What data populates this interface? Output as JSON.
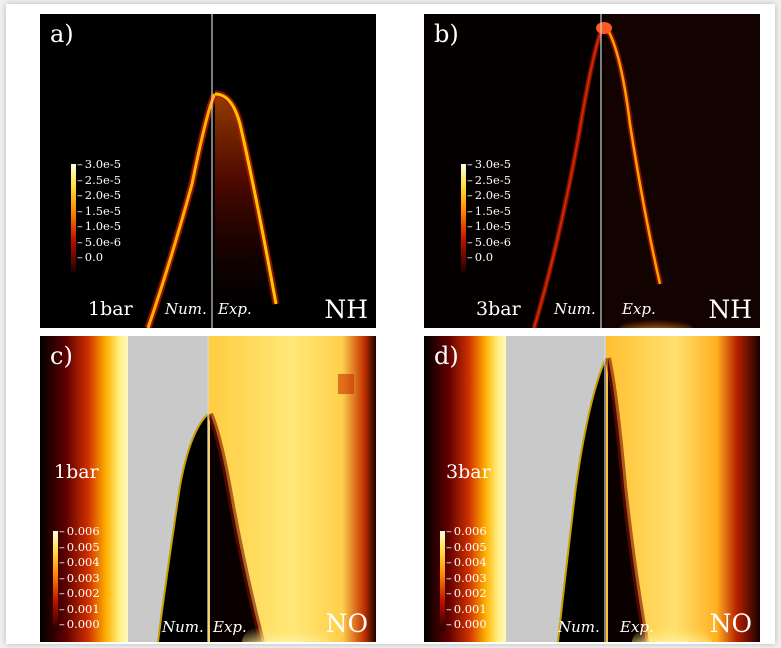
{
  "panels": {
    "a": {
      "label": "a)",
      "pressure": "1bar",
      "num": "Num.",
      "exp": "Exp.",
      "species": "NH"
    },
    "b": {
      "label": "b)",
      "pressure": "3bar",
      "num": "Num.",
      "exp": "Exp.",
      "species": "NH"
    },
    "c": {
      "label": "c)",
      "pressure": "1bar",
      "num": "Num.",
      "exp": "Exp.",
      "species": "NO"
    },
    "d": {
      "label": "d)",
      "pressure": "3bar",
      "num": "Num.",
      "exp": "Exp.",
      "species": "NO"
    }
  },
  "colorbar_nh": [
    "3.0e-5",
    "2.5e-5",
    "2.0e-5",
    "1.5e-5",
    "1.0e-5",
    "5.0e-6",
    "0.0"
  ],
  "colorbar_no": [
    "0.006",
    "0.005",
    "0.004",
    "0.003",
    "0.002",
    "0.001",
    "0.000"
  ]
}
